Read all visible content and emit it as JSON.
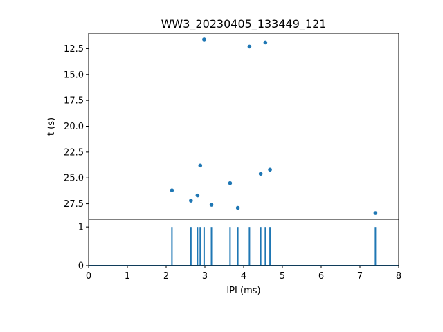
{
  "chart_data": [
    {
      "type": "scatter",
      "title": "WW3_20230405_133449_121",
      "ylabel": "t (s)",
      "xlabel": "",
      "xlim": [
        0,
        8
      ],
      "ylim": [
        29.0,
        11.0
      ],
      "y_inverted": true,
      "yticks": [
        "12.5",
        "15.0",
        "17.5",
        "20.0",
        "22.5",
        "25.0",
        "27.5"
      ],
      "ytick_values": [
        12.5,
        15.0,
        17.5,
        20.0,
        22.5,
        25.0,
        27.5
      ],
      "color": "#1f77b4",
      "points": [
        {
          "x": 2.98,
          "y": 11.6
        },
        {
          "x": 4.15,
          "y": 12.3
        },
        {
          "x": 4.56,
          "y": 11.9
        },
        {
          "x": 2.88,
          "y": 23.8
        },
        {
          "x": 4.44,
          "y": 24.6
        },
        {
          "x": 4.68,
          "y": 24.2
        },
        {
          "x": 2.15,
          "y": 26.2
        },
        {
          "x": 3.65,
          "y": 25.5
        },
        {
          "x": 2.81,
          "y": 26.7
        },
        {
          "x": 2.64,
          "y": 27.2
        },
        {
          "x": 3.17,
          "y": 27.6
        },
        {
          "x": 3.85,
          "y": 27.9
        },
        {
          "x": 7.4,
          "y": 28.4
        }
      ]
    },
    {
      "type": "line",
      "xlabel": "IPI (ms)",
      "ylabel": "",
      "xlim": [
        0,
        8
      ],
      "ylim": [
        0,
        1.2
      ],
      "xticks": [
        "0",
        "1",
        "2",
        "3",
        "4",
        "5",
        "6",
        "7",
        "8"
      ],
      "xtick_values": [
        0,
        1,
        2,
        3,
        4,
        5,
        6,
        7,
        8
      ],
      "yticks": [
        "0",
        "1"
      ],
      "ytick_values": [
        0,
        1
      ],
      "color": "#1f77b4",
      "spikes_x": [
        2.15,
        2.64,
        2.81,
        2.88,
        2.98,
        3.17,
        3.65,
        3.85,
        4.15,
        4.44,
        4.56,
        4.68,
        7.4
      ],
      "spike_height": 1
    }
  ]
}
